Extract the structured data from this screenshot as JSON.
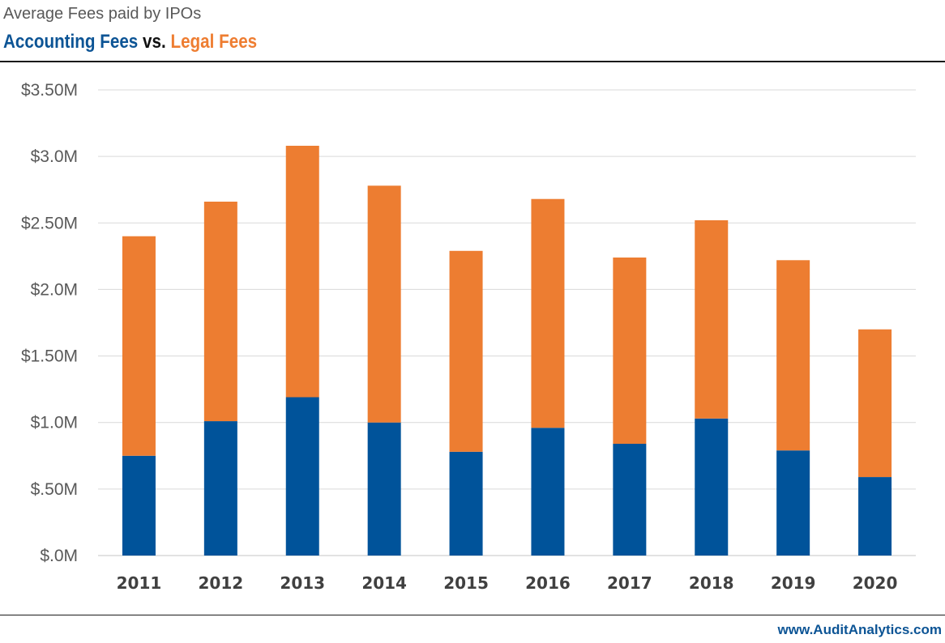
{
  "header": {
    "subtitle": "Average Fees paid by IPOs",
    "title_part1": "Accounting Fees",
    "title_vs": "vs.",
    "title_part2": "Legal Fees"
  },
  "footer": {
    "source": "www.AuditAnalytics.com"
  },
  "colors": {
    "accounting": "#00539a",
    "legal": "#ed7d31",
    "grid": "#d9d9d9"
  },
  "chart_data": {
    "type": "bar",
    "stacked": true,
    "title": "Accounting Fees vs. Legal Fees",
    "subtitle": "Average Fees paid by IPOs",
    "categories": [
      "2011",
      "2012",
      "2013",
      "2014",
      "2015",
      "2016",
      "2017",
      "2018",
      "2019",
      "2020"
    ],
    "series": [
      {
        "name": "Accounting Fees",
        "values": [
          0.75,
          1.01,
          1.19,
          1.0,
          0.78,
          0.96,
          0.84,
          1.03,
          0.79,
          0.59
        ]
      },
      {
        "name": "Legal Fees",
        "values": [
          1.65,
          1.65,
          1.89,
          1.78,
          1.51,
          1.72,
          1.4,
          1.49,
          1.43,
          1.11
        ]
      }
    ],
    "y_ticks": [
      {
        "value": 0,
        "label": "$.0M"
      },
      {
        "value": 0.5,
        "label": "$.50M"
      },
      {
        "value": 1.0,
        "label": "$1.0M"
      },
      {
        "value": 1.5,
        "label": "$1.50M"
      },
      {
        "value": 2.0,
        "label": "$2.0M"
      },
      {
        "value": 2.5,
        "label": "$2.50M"
      },
      {
        "value": 3.0,
        "label": "$3.0M"
      },
      {
        "value": 3.5,
        "label": "$3.50M"
      }
    ],
    "ylim": [
      0,
      3.5
    ],
    "grid": true,
    "legend": "none"
  }
}
